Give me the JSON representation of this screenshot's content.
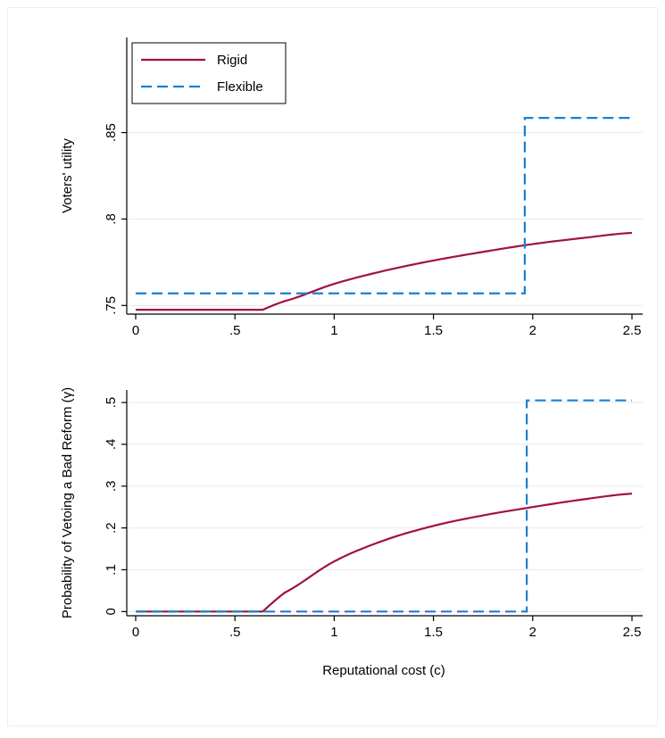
{
  "chart_data": [
    {
      "type": "line",
      "ylabel": "Voters' utility",
      "xlabel": "",
      "xlim": [
        0,
        2.5
      ],
      "ylim": [
        0.745,
        0.905
      ],
      "x_ticks": [
        0,
        0.5,
        1,
        1.5,
        2,
        2.5
      ],
      "x_tick_labels": [
        "0",
        ".5",
        "1",
        "1.5",
        "2",
        "2.5"
      ],
      "y_ticks": [
        0.75,
        0.8,
        0.85
      ],
      "y_tick_labels": [
        ".75",
        ".8",
        ".85"
      ],
      "grid": "horizontal",
      "legend": {
        "placement": "top-left",
        "entries": [
          "Rigid",
          "Flexible"
        ]
      },
      "series": [
        {
          "name": "Rigid",
          "color": "#a0123f",
          "style": "solid",
          "x": [
            0,
            0.64,
            0.75,
            1.0,
            1.25,
            1.5,
            1.75,
            2.0,
            2.25,
            2.5
          ],
          "y": [
            0.7475,
            0.7475,
            0.7525,
            0.7625,
            0.77,
            0.776,
            0.781,
            0.7855,
            0.789,
            0.792
          ]
        },
        {
          "name": "Flexible",
          "color": "#1a7fd4",
          "style": "dashed",
          "x": [
            0,
            1.96,
            1.96,
            2.5
          ],
          "y": [
            0.757,
            0.757,
            0.8585,
            0.8585
          ]
        }
      ]
    },
    {
      "type": "line",
      "ylabel": "Probability of Vetoing a Bad Reform (γ)",
      "xlabel": "Reputational cost (c)",
      "xlim": [
        0,
        2.5
      ],
      "ylim": [
        -0.01,
        0.53
      ],
      "x_ticks": [
        0,
        0.5,
        1,
        1.5,
        2,
        2.5
      ],
      "x_tick_labels": [
        "0",
        ".5",
        "1",
        "1.5",
        "2",
        "2.5"
      ],
      "y_ticks": [
        0,
        0.1,
        0.2,
        0.3,
        0.4,
        0.5
      ],
      "y_tick_labels": [
        "0",
        ".1",
        ".2",
        ".3",
        ".4",
        ".5"
      ],
      "grid": "horizontal",
      "series": [
        {
          "name": "Rigid",
          "color": "#a0123f",
          "style": "solid",
          "x": [
            0,
            0.64,
            0.75,
            1.0,
            1.25,
            1.5,
            1.75,
            2.0,
            2.25,
            2.5
          ],
          "y": [
            0,
            0,
            0.045,
            0.12,
            0.17,
            0.205,
            0.23,
            0.25,
            0.268,
            0.282
          ]
        },
        {
          "name": "Flexible",
          "color": "#1a7fd4",
          "style": "dashed",
          "x": [
            0,
            1.97,
            1.97,
            2.5
          ],
          "y": [
            0,
            0,
            0.505,
            0.505
          ]
        }
      ]
    }
  ]
}
